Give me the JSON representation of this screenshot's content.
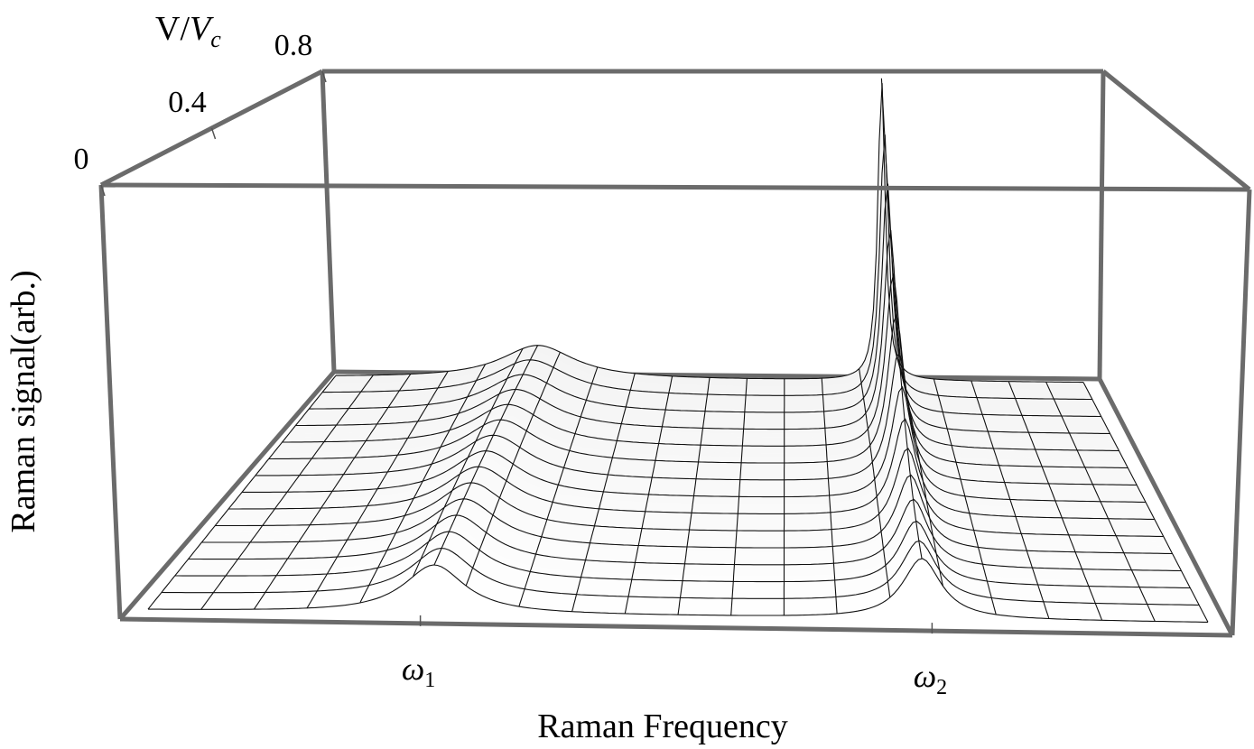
{
  "chart_data": {
    "type": "surface3d",
    "title": "",
    "xlabel": "Raman Frequency",
    "ylabel": "V/V_c",
    "zlabel": "Raman signal(arb.)",
    "x_ticks": [
      {
        "value": 0.27,
        "label": "ω1",
        "symbol": "ω",
        "sub": "1"
      },
      {
        "value": 0.73,
        "label": "ω2",
        "symbol": "ω",
        "sub": "2"
      }
    ],
    "y_ticks": [
      {
        "value": 0,
        "label": "0"
      },
      {
        "value": 0.4,
        "label": "0.4"
      },
      {
        "value": 0.8,
        "label": "0.8"
      }
    ],
    "y_label_parts": {
      "main": "V/",
      "italic": "V",
      "sub": "c"
    },
    "x_range": [
      0,
      1
    ],
    "y_range": [
      0,
      0.8
    ],
    "peaks": [
      {
        "name": "ω1 mode",
        "x": 0.27,
        "height_at_front": 0.16,
        "height_at_back": 0.11,
        "width_front": 0.035,
        "width_back": 0.06
      },
      {
        "name": "ω2 mode",
        "x": 0.73,
        "height_at_front": 0.2,
        "height_at_back": 1.0,
        "width_front": 0.022,
        "width_back": 0.006
      }
    ],
    "mesh": {
      "x_lines": 20,
      "y_lines": 14
    },
    "colors": {
      "surface": "#f4f4f4",
      "frame": "#6b6b6b",
      "mesh": "#111111"
    }
  }
}
